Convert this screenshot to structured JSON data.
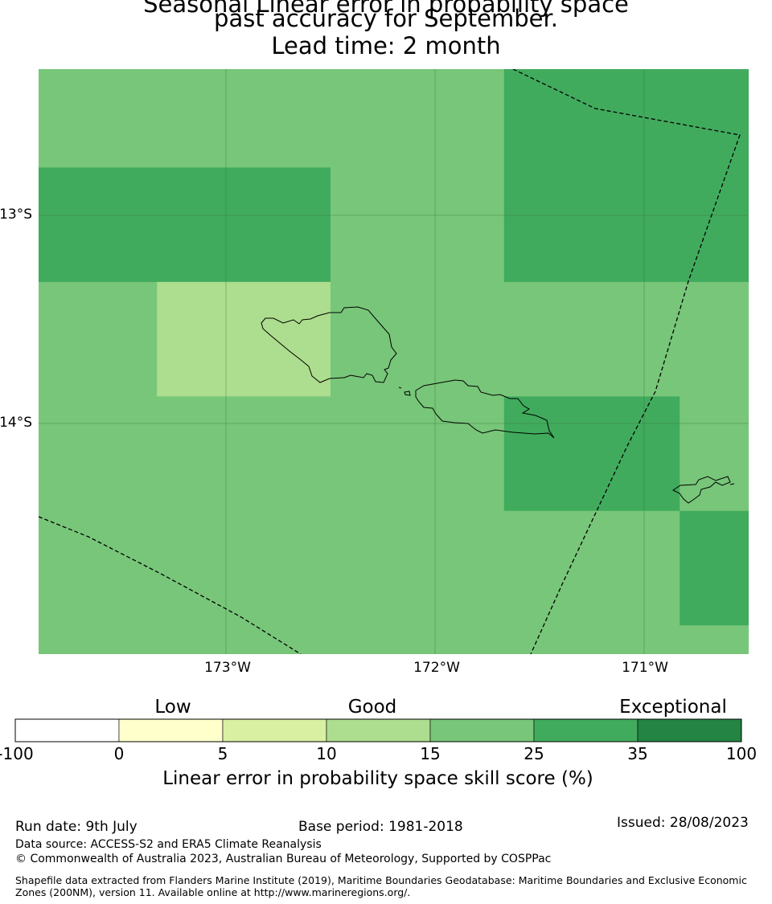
{
  "title": {
    "line1": "Seasonal Linear error in probability space",
    "line2": "past accuracy for September.",
    "line3": "Lead time: 2 month"
  },
  "map": {
    "background_color": "#78c679",
    "lat_labels": [
      "13°S",
      "14°S"
    ],
    "lon_labels": [
      "173°W",
      "172°W",
      "171°W"
    ],
    "skill_cells": [
      {
        "lon": [
          -173.9,
          -172.5
        ],
        "lat": [
          -12.77,
          -13.32
        ],
        "value": 25,
        "color": "#41ab5d"
      },
      {
        "lon": [
          -173.33,
          -172.5
        ],
        "lat": [
          -13.32,
          -13.87
        ],
        "value": 10,
        "color": "#addd8e"
      },
      {
        "lon": [
          -171.67,
          -170.5
        ],
        "lat": [
          -12.29,
          -13.32
        ],
        "value": 25,
        "color": "#41ab5d"
      },
      {
        "lon": [
          -171.67,
          -170.83
        ],
        "lat": [
          -13.87,
          -14.42
        ],
        "value": 25,
        "color": "#41ab5d"
      },
      {
        "lon": [
          -170.83,
          -170.5
        ],
        "lat": [
          -14.42,
          -14.97
        ],
        "value": 25,
        "color": "#41ab5d"
      }
    ]
  },
  "legend": {
    "categories": [
      {
        "label": "Low",
        "at": 2.5
      },
      {
        "label": "Good",
        "at": 12.5
      },
      {
        "label": "Exceptional",
        "at": 67.5
      }
    ],
    "boundaries": [
      "-100",
      "0",
      "5",
      "10",
      "15",
      "25",
      "35",
      "100"
    ],
    "colors": [
      "#ffffff",
      "#ffffcc",
      "#d9f0a3",
      "#addd8e",
      "#78c679",
      "#41ab5d",
      "#238443"
    ],
    "title": "Linear error in probability space skill score (%)"
  },
  "footer": {
    "run_date": "Run date: 9th July",
    "base_period": "Base period: 1981-2018",
    "issued": "Issued: 28/08/2023",
    "data_source": "Data source: ACCESS-S2 and ERA5 Climate Reanalysis",
    "copyright": "© Commonwealth of Australia 2023, Australian Bureau of Meteorology, Supported by COSPPac",
    "shapefile": "Shapefile data extracted from Flanders Marine Institute (2019), Maritime Boundaries Geodatabase: Maritime Boundaries and Exclusive Economic Zones (200NM), version 11. Available online at http://www.marineregions.org/."
  }
}
